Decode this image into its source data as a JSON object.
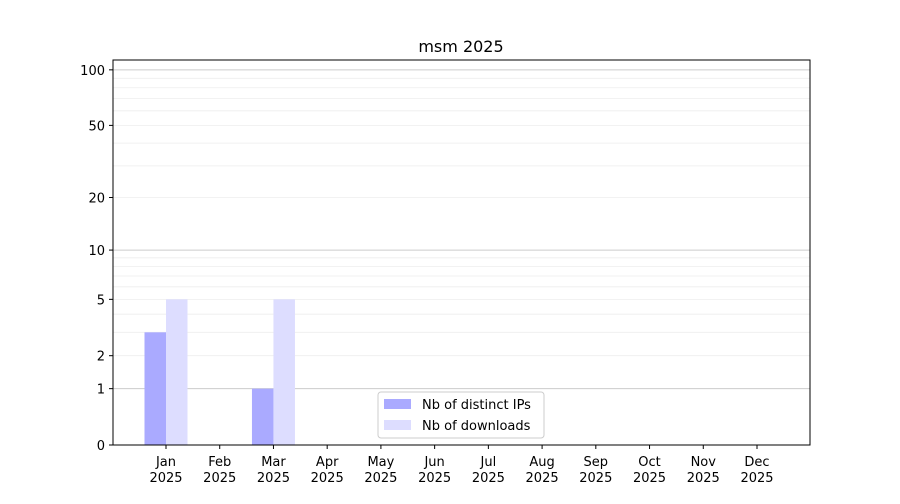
{
  "chart_data": {
    "type": "bar",
    "title": "msm 2025",
    "xlabel": "",
    "ylabel": "",
    "yscale": "log(1+y)",
    "ylim": [
      0,
      113
    ],
    "yticks": [
      0,
      1,
      2,
      5,
      10,
      20,
      50,
      100
    ],
    "ytick_labels": [
      "0",
      "1",
      "2",
      "5",
      "10",
      "20",
      "50",
      "100"
    ],
    "categories": [
      "Jan\n2025",
      "Feb\n2025",
      "Mar\n2025",
      "Apr\n2025",
      "May\n2025",
      "Jun\n2025",
      "Jul\n2025",
      "Aug\n2025",
      "Sep\n2025",
      "Oct\n2025",
      "Nov\n2025",
      "Dec\n2025"
    ],
    "series": [
      {
        "name": "Nb of distinct IPs",
        "color": "#aaaaff",
        "values": [
          3,
          0,
          1,
          0,
          0,
          0,
          0,
          0,
          0,
          0,
          0,
          0
        ]
      },
      {
        "name": "Nb of downloads",
        "color": "#ddddff",
        "values": [
          5,
          0,
          5,
          0,
          0,
          0,
          0,
          0,
          0,
          0,
          0,
          0
        ]
      }
    ],
    "grid": true,
    "legend": "bottom-center"
  }
}
